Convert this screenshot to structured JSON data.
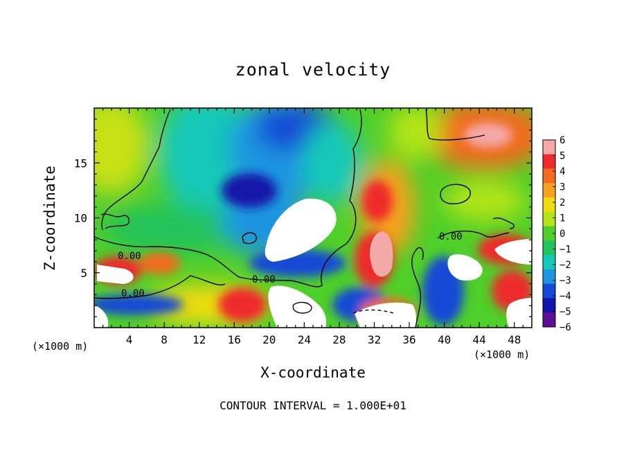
{
  "chart_data": {
    "type": "heatmap",
    "title": "zonal velocity",
    "xlabel": "X-coordinate",
    "ylabel": "Z-coordinate",
    "x_unit_label": "(×1000 m)",
    "xlim": [
      0,
      50
    ],
    "ylim": [
      0,
      20
    ],
    "x_ticks": [
      4,
      8,
      12,
      16,
      20,
      24,
      28,
      32,
      36,
      40,
      44,
      48
    ],
    "y_ticks": [
      5,
      10,
      15
    ],
    "colorbar": {
      "ticks": [
        6,
        5,
        4,
        3,
        2,
        1,
        0,
        -1,
        -2,
        -3,
        -4,
        -5,
        -6
      ],
      "range": [
        -6,
        6
      ],
      "colors": [
        "#f4a8a8",
        "#ee2a2a",
        "#f26b1c",
        "#f6a11c",
        "#f0dc10",
        "#b2e418",
        "#4fcf29",
        "#22c25c",
        "#16c8b7",
        "#1d95e0",
        "#1649d6",
        "#1414a8",
        "#5c0e96"
      ]
    },
    "contour_labels": [
      "0.00",
      "0.00",
      "0.00",
      "0.00"
    ],
    "footer": "CONTOUR INTERVAL = 1.000E+01"
  }
}
